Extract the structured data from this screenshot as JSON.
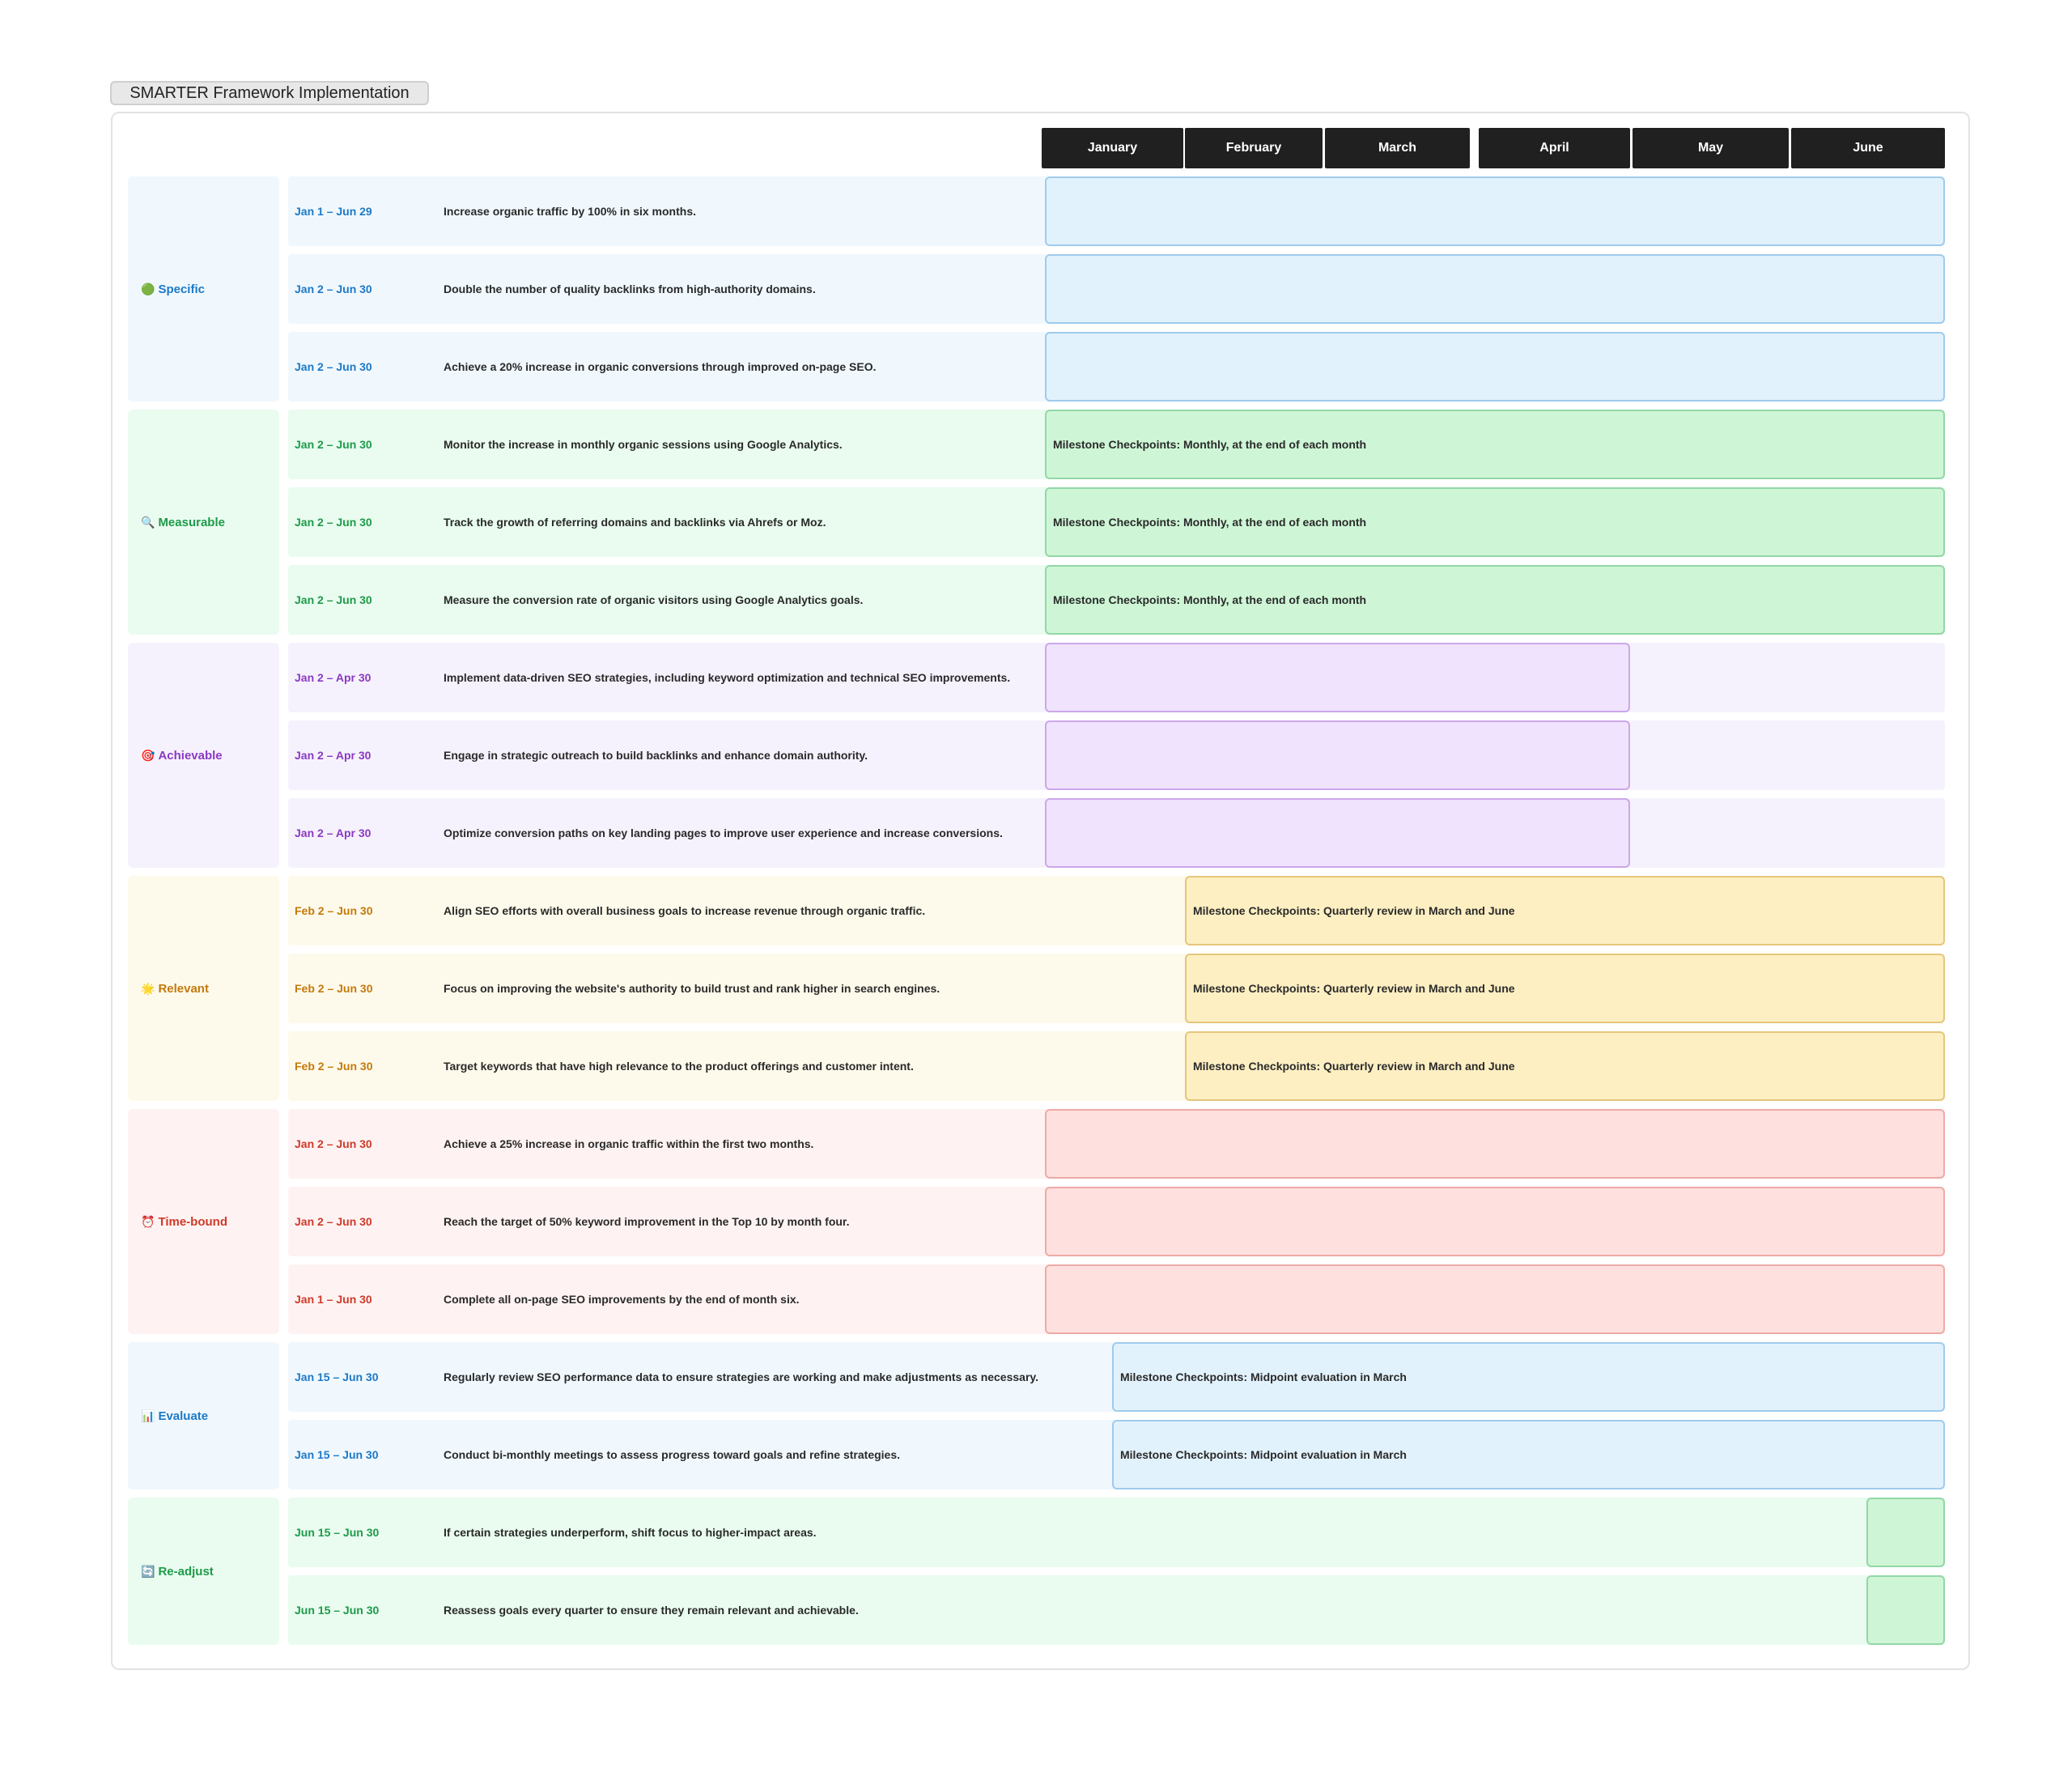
{
  "title": "SMARTER Framework Implementation",
  "months": [
    "January",
    "February",
    "March",
    "April",
    "May",
    "June"
  ],
  "groups": [
    {
      "icon": "🟢",
      "label": "Specific"
    },
    {
      "icon": "🔍",
      "label": "Measurable"
    },
    {
      "icon": "🎯",
      "label": "Achievable"
    },
    {
      "icon": "🌟",
      "label": "Relevant"
    },
    {
      "icon": "⏰",
      "label": "Time-bound"
    },
    {
      "icon": "📊",
      "label": "Evaluate"
    },
    {
      "icon": "🔄",
      "label": "Re-adjust"
    }
  ],
  "rows": [
    {
      "date": "Jan 1 – Jun 29",
      "desc": "Increase organic traffic by 100% in six months.",
      "bar": ""
    },
    {
      "date": "Jan 2 – Jun 30",
      "desc": "Double the number of quality backlinks from high-authority domains.",
      "bar": ""
    },
    {
      "date": "Jan 2 – Jun 30",
      "desc": "Achieve a 20% increase in organic conversions through improved on-page SEO.",
      "bar": ""
    },
    {
      "date": "Jan 2 – Jun 30",
      "desc": "Monitor the increase in monthly organic sessions using Google Analytics.",
      "bar": "Milestone Checkpoints: Monthly, at the end of each month"
    },
    {
      "date": "Jan 2 – Jun 30",
      "desc": "Track the growth of referring domains and backlinks via Ahrefs or Moz.",
      "bar": "Milestone Checkpoints: Monthly, at the end of each month"
    },
    {
      "date": "Jan 2 – Jun 30",
      "desc": "Measure the conversion rate of organic visitors using Google Analytics goals.",
      "bar": "Milestone Checkpoints: Monthly, at the end of each month"
    },
    {
      "date": "Jan 2 – Apr 30",
      "desc": "Implement data-driven SEO strategies, including keyword optimization and technical SEO improvements.",
      "bar": ""
    },
    {
      "date": "Jan 2 – Apr 30",
      "desc": "Engage in strategic outreach to build backlinks and enhance domain authority.",
      "bar": ""
    },
    {
      "date": "Jan 2 – Apr 30",
      "desc": "Optimize conversion paths on key landing pages to improve user experience and increase conversions.",
      "bar": ""
    },
    {
      "date": "Feb 2 – Jun 30",
      "desc": "Align SEO efforts with overall business goals to increase revenue through organic traffic.",
      "bar": "Milestone Checkpoints: Quarterly review in March and June"
    },
    {
      "date": "Feb 2 – Jun 30",
      "desc": "Focus on improving the website's authority to build trust and rank higher in search engines.",
      "bar": "Milestone Checkpoints: Quarterly review in March and June"
    },
    {
      "date": "Feb 2 – Jun 30",
      "desc": "Target keywords that have high relevance to the product offerings and customer intent.",
      "bar": "Milestone Checkpoints: Quarterly review in March and June"
    },
    {
      "date": "Jan 2 – Jun 30",
      "desc": "Achieve a 25% increase in organic traffic within the first two months.",
      "bar": ""
    },
    {
      "date": "Jan 2 – Jun 30",
      "desc": "Reach the target of 50% keyword improvement in the Top 10 by month four.",
      "bar": ""
    },
    {
      "date": "Jan 1 – Jun 30",
      "desc": "Complete all on-page SEO improvements by the end of month six.",
      "bar": ""
    },
    {
      "date": "Jan 15 – Jun 30",
      "desc": "Regularly review SEO performance data to ensure strategies are working and make adjustments as necessary.",
      "bar": "Milestone Checkpoints: Midpoint evaluation in March"
    },
    {
      "date": "Jan 15 – Jun 30",
      "desc": "Conduct bi-monthly meetings to assess progress toward goals and refine strategies.",
      "bar": "Milestone Checkpoints: Midpoint evaluation in March"
    },
    {
      "date": "Jun 15 – Jun 30",
      "desc": "If certain strategies underperform, shift focus to higher-impact areas.",
      "bar": ""
    },
    {
      "date": "Jun 15 – Jun 30",
      "desc": "Reassess goals every quarter to ensure they remain relevant and achievable.",
      "bar": ""
    }
  ],
  "colors": {
    "blue": {
      "text": "#1d79c6",
      "row": "#f0f8fe",
      "bar": "#e2f2fd",
      "border": "#9fcbec"
    },
    "green": {
      "text": "#1f9a4a",
      "row": "#e9fcef",
      "bar": "#cef6d6",
      "border": "#92d7a6"
    },
    "purple": {
      "text": "#8a3ac2",
      "row": "#f6f2fd",
      "bar": "#f0e3fd",
      "border": "#cca7ea"
    },
    "yellow": {
      "text": "#c4790b",
      "row": "#fefaeb",
      "bar": "#fdefc2",
      "border": "#e6c67b"
    },
    "red": {
      "text": "#cf3a2a",
      "row": "#fef3f2",
      "bar": "#fee0df",
      "border": "#eeaaa6"
    }
  }
}
